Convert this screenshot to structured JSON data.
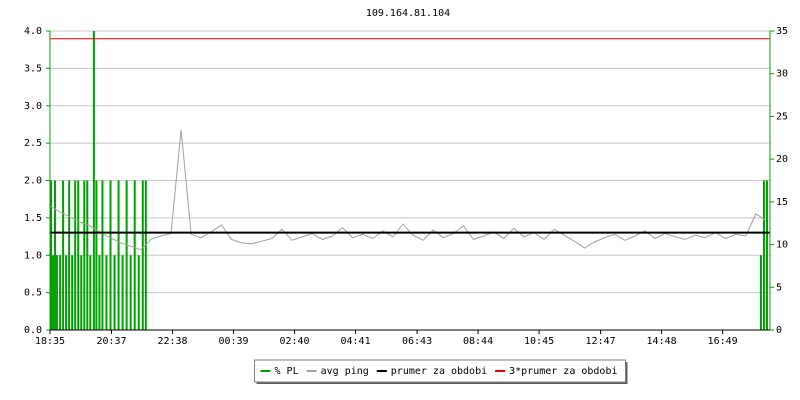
{
  "chart_data": {
    "type": "line",
    "title": "109.164.81.104",
    "xlim": [
      0,
      1428
    ],
    "xticks": [
      {
        "value": 0,
        "label": "18:35"
      },
      {
        "value": 122,
        "label": "20:37"
      },
      {
        "value": 243,
        "label": "22:38"
      },
      {
        "value": 364,
        "label": "00:39"
      },
      {
        "value": 485,
        "label": "02:40"
      },
      {
        "value": 606,
        "label": "04:41"
      },
      {
        "value": 728,
        "label": "06:43"
      },
      {
        "value": 849,
        "label": "08:44"
      },
      {
        "value": 970,
        "label": "10:45"
      },
      {
        "value": 1092,
        "label": "12:47"
      },
      {
        "value": 1213,
        "label": "14:48"
      },
      {
        "value": 1334,
        "label": "16:49"
      }
    ],
    "ylim": [
      0,
      4
    ],
    "yticks": [
      {
        "value": 0,
        "label": "0.0"
      },
      {
        "value": 0.5,
        "label": "0.5"
      },
      {
        "value": 1,
        "label": "1.0"
      },
      {
        "value": 1.5,
        "label": "1.5"
      },
      {
        "value": 2,
        "label": "2.0"
      },
      {
        "value": 2.5,
        "label": "2.5"
      },
      {
        "value": 3,
        "label": "3.0"
      },
      {
        "value": 3.5,
        "label": "3.5"
      },
      {
        "value": 4,
        "label": "4.0"
      }
    ],
    "y2lim": [
      0,
      35
    ],
    "y2ticks": [
      0,
      5,
      10,
      15,
      20,
      25,
      30,
      35
    ],
    "grid": true,
    "legend": "bottom",
    "series": [
      {
        "name": "% PL",
        "color": "#00a000",
        "type": "bar",
        "x": [
          2,
          6,
          10,
          14,
          20,
          26,
          32,
          38,
          44,
          50,
          56,
          62,
          68,
          74,
          80,
          87,
          92,
          98,
          104,
          112,
          120,
          128,
          136,
          144,
          152,
          160,
          168,
          176,
          184,
          190,
          1410,
          1416,
          1422
        ],
        "values": [
          2,
          1,
          2,
          1,
          1,
          2,
          1,
          2,
          1,
          2,
          2,
          1,
          2,
          2,
          1,
          4,
          2,
          1,
          2,
          1,
          2,
          1,
          2,
          1,
          2,
          1,
          2,
          1,
          2,
          2,
          1,
          2,
          2
        ]
      },
      {
        "name": "avg ping",
        "color": "#a0a0a0",
        "axis": "y2",
        "x": [
          0,
          20,
          40,
          60,
          80,
          100,
          120,
          140,
          160,
          180,
          200,
          220,
          240,
          260,
          280,
          300,
          320,
          340,
          360,
          380,
          400,
          420,
          440,
          460,
          480,
          500,
          520,
          540,
          560,
          580,
          600,
          620,
          640,
          660,
          680,
          700,
          720,
          740,
          760,
          780,
          800,
          820,
          840,
          860,
          880,
          900,
          920,
          940,
          960,
          980,
          1000,
          1020,
          1040,
          1060,
          1080,
          1100,
          1120,
          1140,
          1160,
          1180,
          1200,
          1220,
          1240,
          1260,
          1280,
          1300,
          1320,
          1340,
          1360,
          1380,
          1400,
          1420
        ],
        "values": [
          14.5,
          13.8,
          13.2,
          12.6,
          12.2,
          11.4,
          10.8,
          10.2,
          9.8,
          9.4,
          10.6,
          11.0,
          11.3,
          23.4,
          11.2,
          10.8,
          11.5,
          12.3,
          10.6,
          10.2,
          10.1,
          10.4,
          10.7,
          11.8,
          10.5,
          10.9,
          11.3,
          10.6,
          11.0,
          12.0,
          10.8,
          11.2,
          10.7,
          11.6,
          10.9,
          12.4,
          11.1,
          10.5,
          11.7,
          10.8,
          11.3,
          12.2,
          10.6,
          11.0,
          11.5,
          10.7,
          11.9,
          10.9,
          11.4,
          10.6,
          11.8,
          11.1,
          10.4,
          9.6,
          10.3,
          10.8,
          11.2,
          10.5,
          11.0,
          11.6,
          10.7,
          11.3,
          10.9,
          10.6,
          11.1,
          10.8,
          11.4,
          10.7,
          11.2,
          11.0,
          13.6,
          12.8
        ]
      },
      {
        "name": "prumer za obdobi",
        "color": "#000000",
        "axis": "y2",
        "values": [
          11.4
        ]
      },
      {
        "name": "3*prumer za obdobi",
        "color": "#e00000",
        "axis": "y2",
        "values": [
          34.1
        ]
      }
    ]
  }
}
